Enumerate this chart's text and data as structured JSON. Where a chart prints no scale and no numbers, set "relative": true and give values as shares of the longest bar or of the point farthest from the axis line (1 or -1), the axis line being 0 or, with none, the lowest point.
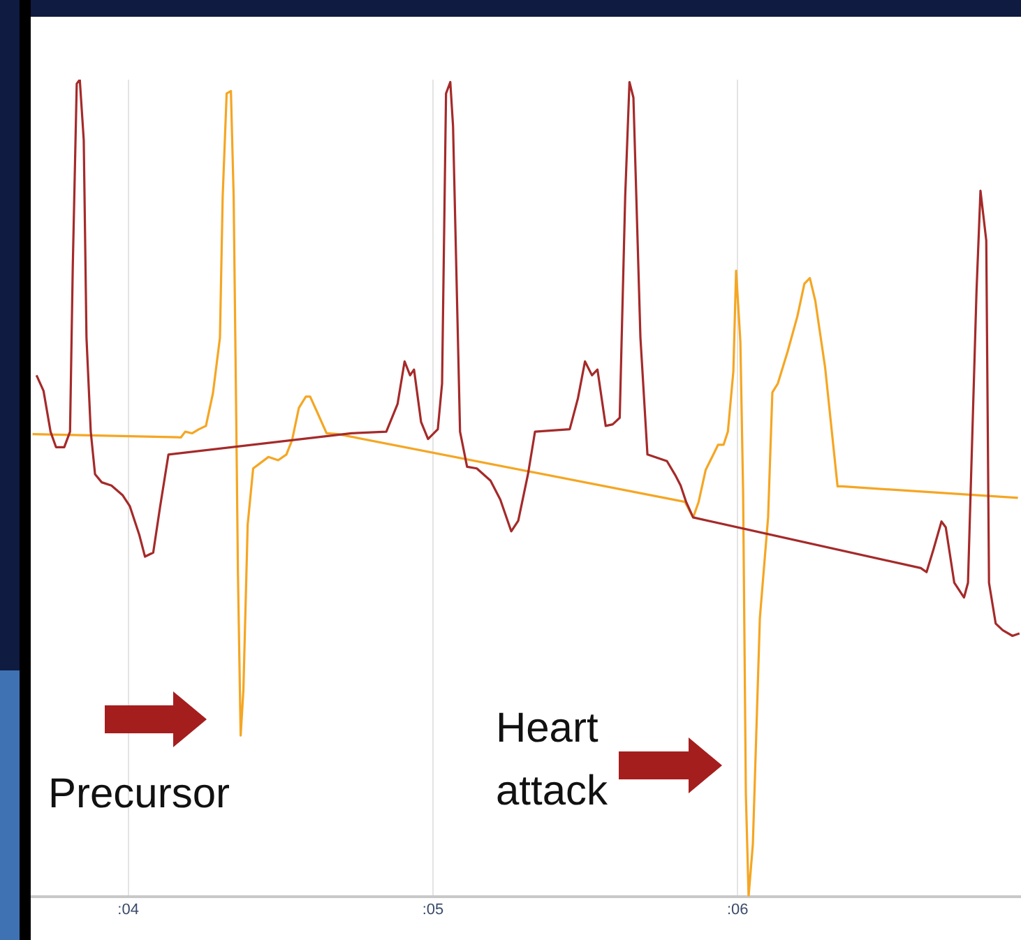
{
  "chart_data": {
    "type": "line",
    "relative": true,
    "xlim": [
      3.68,
      6.93
    ],
    "xticks": [
      {
        "value": 4,
        "label": ":04"
      },
      {
        "value": 5,
        "label": ":05"
      },
      {
        "value": 6,
        "label": ":06"
      }
    ],
    "grid": "x",
    "tick_labels": "x",
    "legend": false,
    "marker": "none",
    "line_style": "solid",
    "series": [
      {
        "color": "#a52a2a",
        "x": [
          3.699,
          3.722,
          3.745,
          3.763,
          3.79,
          3.809,
          3.818,
          3.831,
          3.841,
          3.854,
          3.863,
          3.877,
          3.891,
          3.913,
          3.945,
          3.982,
          4.005,
          4.036,
          4.055,
          4.082,
          4.105,
          4.132,
          4.733,
          4.847,
          4.884,
          4.907,
          4.925,
          4.938,
          4.961,
          4.984,
          5.016,
          5.03,
          5.043,
          5.057,
          5.066,
          5.089,
          5.112,
          5.144,
          5.189,
          5.221,
          5.257,
          5.28,
          5.312,
          5.335,
          5.449,
          5.476,
          5.499,
          5.522,
          5.54,
          5.567,
          5.59,
          5.613,
          5.631,
          5.645,
          5.658,
          5.681,
          5.704,
          5.768,
          5.795,
          5.813,
          5.831,
          5.854,
          6.601,
          6.62,
          6.642,
          6.669,
          6.683,
          6.711,
          6.743,
          6.756,
          6.784,
          6.797,
          6.816,
          6.825,
          6.847,
          6.87,
          6.902,
          6.925
        ],
        "values": [
          0.638,
          0.619,
          0.569,
          0.55,
          0.55,
          0.569,
          0.771,
          0.995,
          1,
          0.926,
          0.684,
          0.569,
          0.517,
          0.507,
          0.503,
          0.491,
          0.478,
          0.443,
          0.416,
          0.421,
          0.478,
          0.541,
          0.567,
          0.569,
          0.603,
          0.655,
          0.638,
          0.645,
          0.581,
          0.56,
          0.572,
          0.628,
          0.983,
          0.997,
          0.943,
          0.569,
          0.526,
          0.524,
          0.509,
          0.486,
          0.447,
          0.46,
          0.517,
          0.569,
          0.572,
          0.61,
          0.655,
          0.638,
          0.645,
          0.576,
          0.578,
          0.586,
          0.857,
          0.997,
          0.978,
          0.684,
          0.541,
          0.533,
          0.516,
          0.503,
          0.483,
          0.464,
          0.402,
          0.397,
          0.424,
          0.459,
          0.452,
          0.384,
          0.366,
          0.384,
          0.741,
          0.864,
          0.803,
          0.384,
          0.334,
          0.326,
          0.319,
          0.322
        ]
      },
      {
        "color": "#f5a623",
        "x": [
          3.686,
          4.173,
          4.187,
          4.21,
          4.232,
          4.255,
          4.278,
          4.301,
          4.31,
          4.323,
          4.337,
          4.346,
          4.355,
          4.36,
          4.369,
          4.378,
          4.392,
          4.41,
          4.428,
          4.46,
          4.492,
          4.519,
          4.538,
          4.56,
          4.583,
          4.597,
          4.62,
          4.651,
          4.688,
          5.827,
          5.854,
          5.872,
          5.895,
          5.936,
          5.954,
          5.968,
          5.986,
          5.995,
          6.009,
          6.018,
          6.027,
          6.036,
          6.05,
          6.073,
          6.1,
          6.114,
          6.132,
          6.164,
          6.196,
          6.219,
          6.237,
          6.255,
          6.287,
          6.328,
          6.342,
          6.92
        ],
        "values": [
          0.566,
          0.562,
          0.569,
          0.567,
          0.572,
          0.576,
          0.616,
          0.684,
          0.857,
          0.983,
          0.986,
          0.857,
          0.569,
          0.397,
          0.197,
          0.253,
          0.455,
          0.524,
          0.529,
          0.538,
          0.534,
          0.541,
          0.559,
          0.598,
          0.612,
          0.612,
          0.593,
          0.567,
          0.566,
          0.483,
          0.464,
          0.483,
          0.522,
          0.553,
          0.553,
          0.569,
          0.643,
          0.766,
          0.679,
          0.495,
          0.126,
          0,
          0.064,
          0.341,
          0.464,
          0.617,
          0.628,
          0.667,
          0.71,
          0.75,
          0.757,
          0.729,
          0.648,
          0.502,
          0.502,
          0.488
        ]
      }
    ],
    "annotations": [
      "Precursor",
      "Heart attack"
    ]
  }
}
